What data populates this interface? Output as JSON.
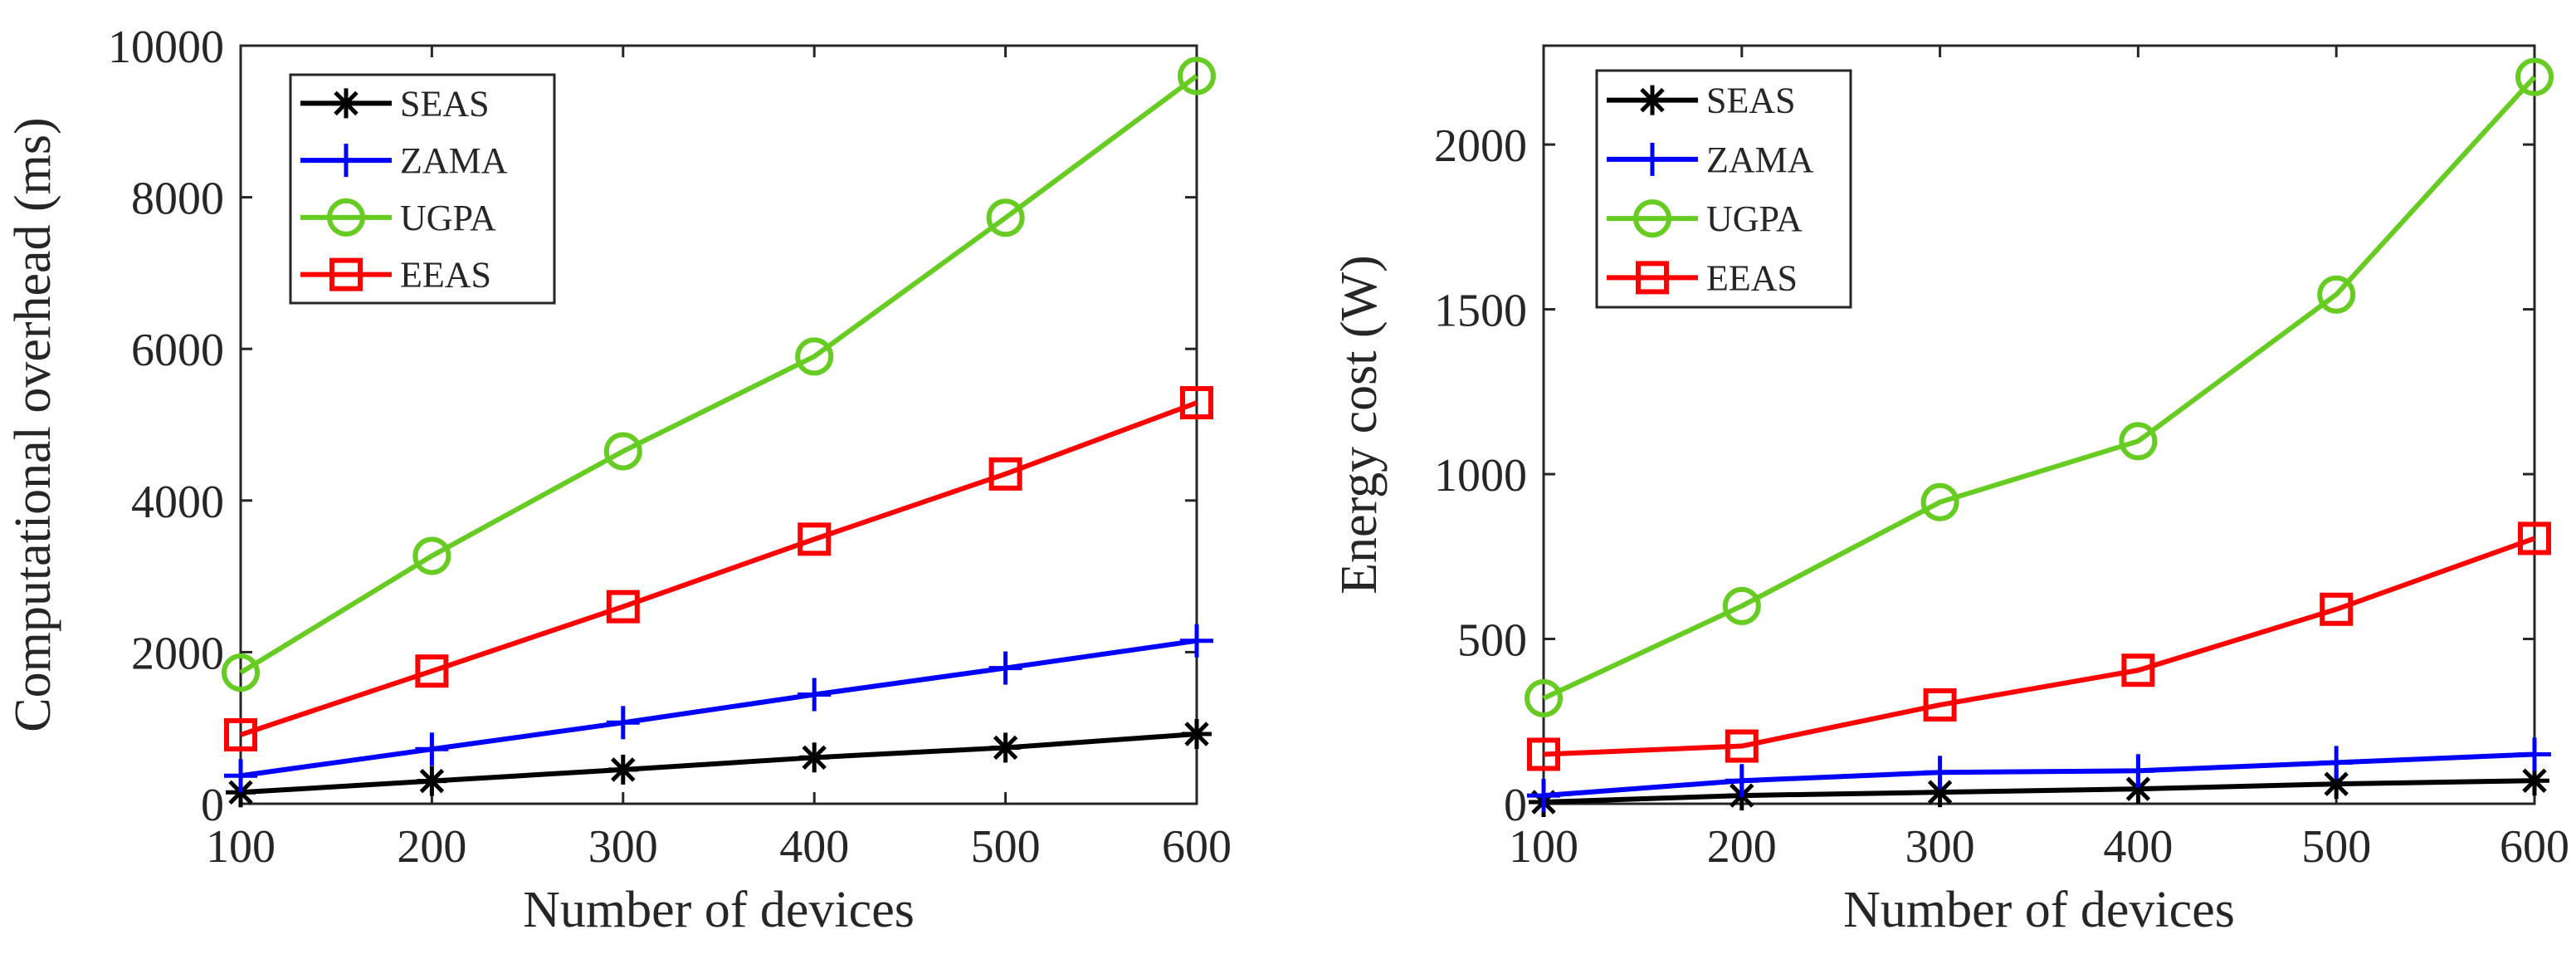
{
  "chart_data": [
    {
      "type": "line",
      "title": "",
      "xlabel": "Number of devices",
      "ylabel": "Computational overhead (ms)",
      "x": [
        100,
        200,
        300,
        400,
        500,
        600
      ],
      "xlim": [
        100,
        600
      ],
      "ylim": [
        0,
        10000
      ],
      "xticks": [
        100,
        200,
        300,
        400,
        500,
        600
      ],
      "yticks": [
        0,
        2000,
        4000,
        6000,
        8000,
        10000
      ],
      "legend_position": "top-left",
      "grid": false,
      "series": [
        {
          "name": "SEAS",
          "color": "#000000",
          "marker": "asterisk",
          "values": [
            150,
            300,
            450,
            610,
            740,
            920
          ]
        },
        {
          "name": "ZAMA",
          "color": "#0000ff",
          "marker": "plus",
          "values": [
            370,
            720,
            1070,
            1440,
            1790,
            2150
          ]
        },
        {
          "name": "UGPA",
          "color": "#66cc22",
          "marker": "circle",
          "values": [
            1730,
            3270,
            4650,
            5900,
            7730,
            9600
          ]
        },
        {
          "name": "EEAS",
          "color": "#ff0000",
          "marker": "square",
          "values": [
            910,
            1750,
            2600,
            3490,
            4350,
            5290
          ]
        }
      ]
    },
    {
      "type": "line",
      "title": "",
      "xlabel": "Number of devices",
      "ylabel": "Energy cost (W)",
      "x": [
        100,
        200,
        300,
        400,
        500,
        600
      ],
      "xlim": [
        100,
        600
      ],
      "ylim": [
        0,
        2300
      ],
      "xticks": [
        100,
        200,
        300,
        400,
        500,
        600
      ],
      "yticks": [
        0,
        500,
        1000,
        1500,
        2000
      ],
      "legend_position": "top-left",
      "grid": false,
      "series": [
        {
          "name": "SEAS",
          "color": "#000000",
          "marker": "asterisk",
          "values": [
            5,
            25,
            35,
            45,
            60,
            70
          ]
        },
        {
          "name": "ZAMA",
          "color": "#0000ff",
          "marker": "plus",
          "values": [
            25,
            70,
            95,
            100,
            125,
            150
          ]
        },
        {
          "name": "UGPA",
          "color": "#66cc22",
          "marker": "circle",
          "values": [
            320,
            600,
            915,
            1100,
            1545,
            2205
          ]
        },
        {
          "name": "EEAS",
          "color": "#ff0000",
          "marker": "square",
          "values": [
            150,
            175,
            300,
            405,
            590,
            805
          ]
        }
      ]
    }
  ]
}
